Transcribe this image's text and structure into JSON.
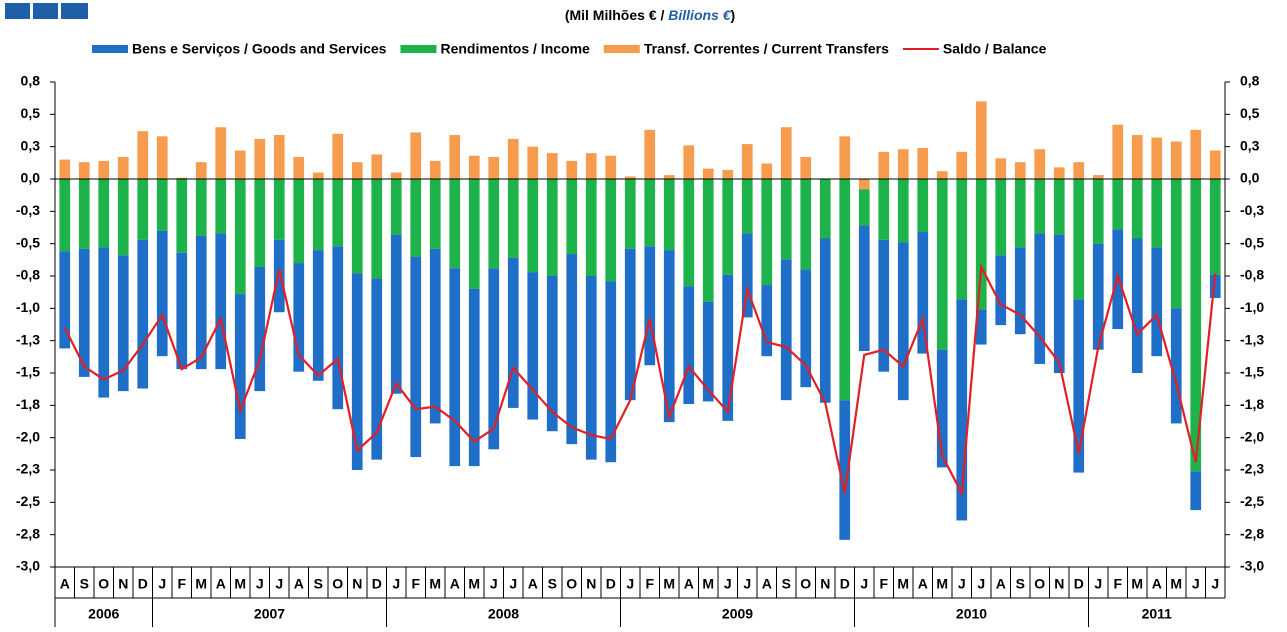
{
  "chart_data": {
    "type": "bar",
    "title": [
      "(Mil Milhões € / ",
      "Billions €",
      ")"
    ],
    "categories": [
      "A",
      "S",
      "O",
      "N",
      "D",
      "J",
      "F",
      "M",
      "A",
      "M",
      "J",
      "J",
      "A",
      "S",
      "O",
      "N",
      "D",
      "J",
      "F",
      "M",
      "A",
      "M",
      "J",
      "J",
      "A",
      "S",
      "O",
      "N",
      "D",
      "J",
      "F",
      "M",
      "A",
      "M",
      "J",
      "J",
      "A",
      "S",
      "O",
      "N",
      "D",
      "J",
      "F",
      "M",
      "A",
      "M",
      "J",
      "J",
      "A",
      "S",
      "O",
      "N",
      "D",
      "J",
      "F",
      "M",
      "A",
      "M",
      "J",
      "J"
    ],
    "years": [
      "2006",
      "2007",
      "2008",
      "2009",
      "2010",
      "2011"
    ],
    "series": [
      {
        "name": "Bens e Serviços / Goods and Services",
        "type": "bar",
        "color": "#1f6fc8",
        "values": [
          -0.75,
          -0.99,
          -1.16,
          -1.05,
          -1.15,
          -0.97,
          -0.9,
          -1.03,
          -1.05,
          -1.12,
          -0.96,
          -0.56,
          -0.84,
          -1.01,
          -1.26,
          -1.52,
          -1.4,
          -1.23,
          -1.55,
          -1.35,
          -1.53,
          -1.37,
          -1.4,
          -1.16,
          -1.14,
          -1.2,
          -1.47,
          -1.42,
          -1.4,
          -1.17,
          -0.92,
          -1.33,
          -0.91,
          -0.77,
          -1.13,
          -0.65,
          -0.55,
          -1.09,
          -0.91,
          -1.27,
          -1.08,
          -0.97,
          -1.02,
          -1.22,
          -0.94,
          -0.91,
          -1.71,
          -0.27,
          -0.54,
          -0.67,
          -1.01,
          -1.07,
          -1.34,
          -0.82,
          -0.77,
          -1.04,
          -0.84,
          -0.89,
          -0.3,
          -0.18
        ]
      },
      {
        "name": "Rendimentos / Income",
        "type": "bar",
        "color": "#1db34a",
        "values": [
          -0.56,
          -0.54,
          -0.53,
          -0.59,
          -0.47,
          -0.4,
          -0.57,
          -0.44,
          -0.42,
          -0.89,
          -0.68,
          -0.47,
          -0.65,
          -0.55,
          -0.52,
          -0.73,
          -0.77,
          -0.43,
          -0.6,
          -0.54,
          -0.69,
          -0.85,
          -0.69,
          -0.61,
          -0.72,
          -0.75,
          -0.58,
          -0.75,
          -0.79,
          -0.54,
          -0.52,
          -0.55,
          -0.83,
          -0.95,
          -0.74,
          -0.42,
          -0.82,
          -0.62,
          -0.7,
          -0.46,
          -1.71,
          -0.28,
          -0.47,
          -0.49,
          -0.41,
          -1.32,
          -0.93,
          -1.01,
          -0.59,
          -0.53,
          -0.42,
          -0.43,
          -0.93,
          -0.5,
          -0.39,
          -0.46,
          -0.53,
          -1.0,
          -2.26,
          -0.74
        ]
      },
      {
        "name": "Transf. Correntes / Current Transfers",
        "type": "bar",
        "color": "#f79b4f",
        "values": [
          0.15,
          0.13,
          0.14,
          0.17,
          0.37,
          0.33,
          0.01,
          0.13,
          0.4,
          0.22,
          0.31,
          0.34,
          0.17,
          0.05,
          0.35,
          0.13,
          0.19,
          0.05,
          0.36,
          0.14,
          0.34,
          0.18,
          0.17,
          0.31,
          0.25,
          0.2,
          0.14,
          0.2,
          0.18,
          0.02,
          0.38,
          0.03,
          0.26,
          0.08,
          0.07,
          0.27,
          0.12,
          0.4,
          0.17,
          0.0,
          0.33,
          -0.08,
          0.21,
          0.23,
          0.24,
          0.06,
          0.21,
          0.6,
          0.16,
          0.13,
          0.23,
          0.09,
          0.13,
          0.03,
          0.42,
          0.34,
          0.32,
          0.29,
          0.38,
          0.22
        ]
      },
      {
        "name": "Saldo / Balance",
        "type": "line",
        "color": "#e31e24",
        "values": [
          -1.15,
          -1.45,
          -1.55,
          -1.48,
          -1.28,
          -1.05,
          -1.47,
          -1.38,
          -1.08,
          -1.79,
          -1.4,
          -0.7,
          -1.36,
          -1.52,
          -1.39,
          -2.1,
          -1.96,
          -1.58,
          -1.78,
          -1.76,
          -1.87,
          -2.03,
          -1.93,
          -1.46,
          -1.63,
          -1.8,
          -1.92,
          -1.98,
          -2.01,
          -1.71,
          -1.08,
          -1.84,
          -1.45,
          -1.63,
          -1.8,
          -0.85,
          -1.26,
          -1.3,
          -1.44,
          -1.73,
          -2.43,
          -1.36,
          -1.32,
          -1.45,
          -1.08,
          -2.14,
          -2.43,
          -0.68,
          -0.97,
          -1.05,
          -1.22,
          -1.42,
          -2.12,
          -1.3,
          -0.75,
          -1.2,
          -1.05,
          -1.58,
          -2.19,
          -0.73
        ]
      }
    ],
    "ylim": [
      -3,
      0.75
    ],
    "yticks": [
      {
        "value": 0.75,
        "label": "0,8"
      },
      {
        "value": 0.5,
        "label": "0,5"
      },
      {
        "value": 0.25,
        "label": "0,3"
      },
      {
        "value": 0,
        "label": "0,0"
      },
      {
        "value": -0.25,
        "label": "-0,3"
      },
      {
        "value": -0.5,
        "label": "-0,5"
      },
      {
        "value": -0.75,
        "label": "-0,8"
      },
      {
        "value": -1,
        "label": "-1,0"
      },
      {
        "value": -1.25,
        "label": "-1,3"
      },
      {
        "value": -1.5,
        "label": "-1,5"
      },
      {
        "value": -1.75,
        "label": "-1,8"
      },
      {
        "value": -2,
        "label": "-2,0"
      },
      {
        "value": -2.25,
        "label": "-2,3"
      },
      {
        "value": -2.5,
        "label": "-2,5"
      },
      {
        "value": -2.75,
        "label": "-2,8"
      },
      {
        "value": -3,
        "label": "-3,0"
      }
    ],
    "y2lim": [
      -3,
      0.75
    ],
    "y2ticks": [
      {
        "value": 0.75,
        "label": "0,8"
      },
      {
        "value": 0.5,
        "label": "0,5"
      },
      {
        "value": 0.25,
        "label": "0,3"
      },
      {
        "value": 0,
        "label": "0,0"
      },
      {
        "value": -0.25,
        "label": "-0,3"
      },
      {
        "value": -0.5,
        "label": "-0,5"
      },
      {
        "value": -0.75,
        "label": "-0,8"
      },
      {
        "value": -1,
        "label": "-1,0"
      },
      {
        "value": -1.25,
        "label": "-1,3"
      },
      {
        "value": -1.5,
        "label": "-1,5"
      },
      {
        "value": -1.75,
        "label": "-1,8"
      },
      {
        "value": -2,
        "label": "-2,0"
      },
      {
        "value": -2.25,
        "label": "-2,3"
      },
      {
        "value": -2.5,
        "label": "-2,5"
      },
      {
        "value": -2.75,
        "label": "-2,8"
      },
      {
        "value": -3,
        "label": "-3,0"
      }
    ],
    "grid": false
  }
}
